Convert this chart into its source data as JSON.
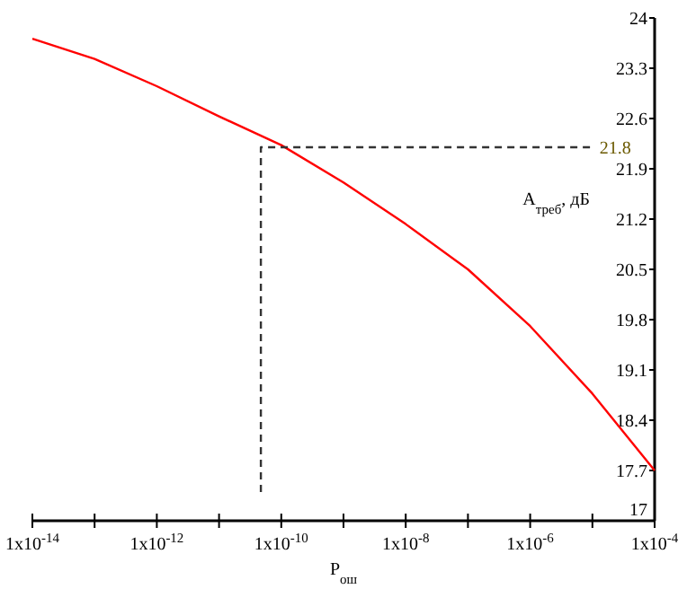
{
  "chart_data": {
    "type": "line",
    "xlabel": "P$_{ош}$",
    "ylabel": "A$_{треб}$, дБ",
    "log": "x",
    "grid": false,
    "marker": "none",
    "xlim": [
      1e-14,
      0.0001
    ],
    "ylim": [
      17,
      24
    ],
    "xticks": [
      {
        "value": 1e-14,
        "label": "1x10$^{-14}$"
      },
      {
        "value": 1e-13,
        "label": null
      },
      {
        "value": 1e-12,
        "label": "1x10$^{-12}$"
      },
      {
        "value": 1e-11,
        "label": null
      },
      {
        "value": 1e-10,
        "label": "1x10$^{-10}$"
      },
      {
        "value": 1e-09,
        "label": null
      },
      {
        "value": 1e-08,
        "label": "1x10$^{-8}$"
      },
      {
        "value": 1e-07,
        "label": null
      },
      {
        "value": 1e-06,
        "label": "1x10$^{-6}$"
      },
      {
        "value": 1e-05,
        "label": null
      },
      {
        "value": 0.0001,
        "label": "1x10$^{-4}$"
      }
    ],
    "yticks": [
      17,
      17.7,
      18.4,
      19.1,
      19.8,
      20.5,
      21.2,
      21.9,
      22.6,
      23.3,
      24
    ],
    "series": [
      {
        "color": "#ff0000",
        "line_style": "solid",
        "x": [
          1e-14,
          1e-13,
          1e-12,
          1e-11,
          1e-10,
          1e-09,
          1e-08,
          1e-07,
          1e-06,
          1e-05,
          0.0001
        ],
        "values": [
          23.71,
          23.43,
          23.05,
          22.63,
          22.23,
          21.71,
          21.13,
          20.5,
          19.71,
          18.77,
          17.7
        ]
      },
      {
        "color": "#333333",
        "line_style": "dashed",
        "x": [
          4.7e-11,
          4.7e-11,
          1e-05
        ],
        "values": [
          17.4,
          22.2,
          22.2
        ]
      }
    ],
    "annotations": [
      {
        "text": "21.8",
        "x": 1e-05,
        "y": 22.2
      }
    ]
  }
}
